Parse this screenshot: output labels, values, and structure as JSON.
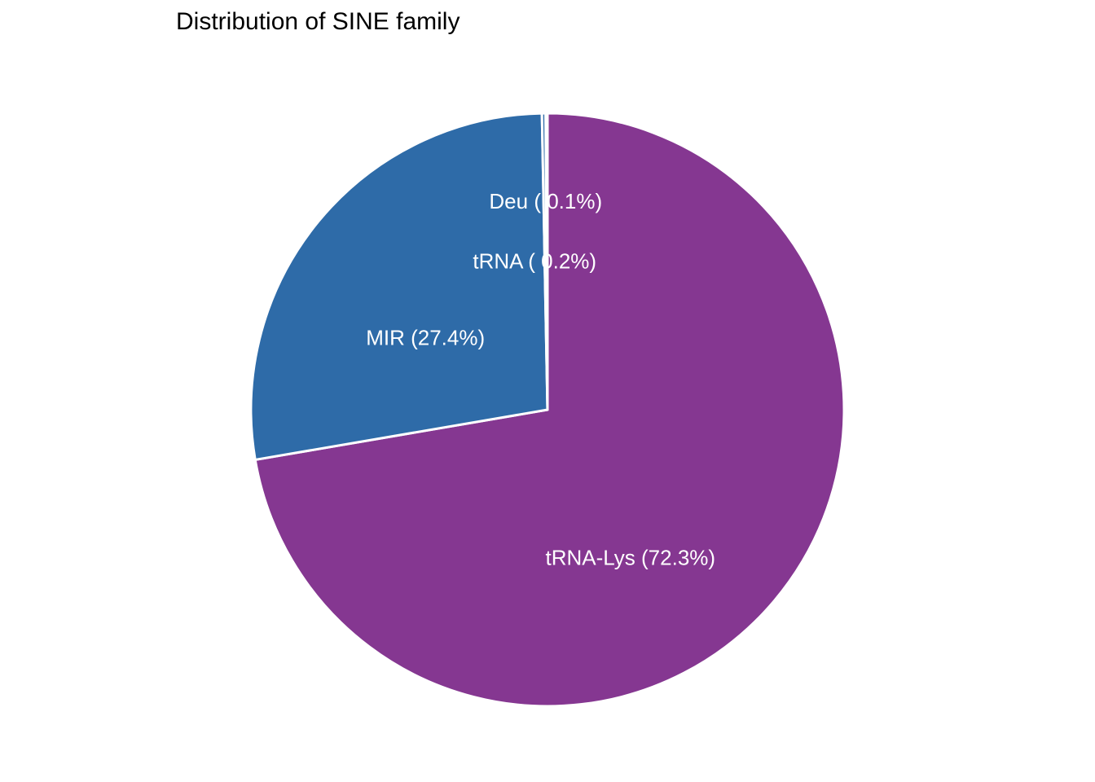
{
  "chart_data": {
    "type": "pie",
    "title": "Distribution of SINE family",
    "start_angle_deg": 0,
    "direction": "clockwise",
    "slices": [
      {
        "name": "tRNA-Lys",
        "value": 72.3,
        "label": "tRNA-Lys (72.3%)",
        "color": "#853791"
      },
      {
        "name": "MIR",
        "value": 27.4,
        "label": "MIR (27.4%)",
        "color": "#2E6BA8"
      },
      {
        "name": "tRNA",
        "value": 0.2,
        "label": "tRNA ( 0.2%)",
        "color": "#2E6BA8"
      },
      {
        "name": "Deu",
        "value": 0.1,
        "label": "Deu ( 0.1%)",
        "color": "#2E6BA8"
      }
    ],
    "legend": "none",
    "slice_border_color": "#ffffff"
  }
}
